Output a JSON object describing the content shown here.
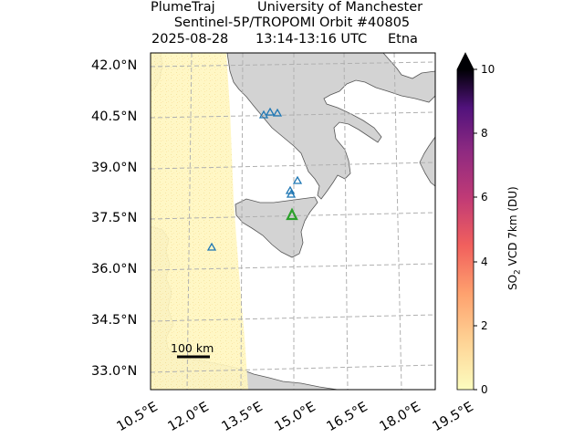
{
  "title": {
    "line1_left": "PlumeTraj",
    "line1_right": "University of Manchester",
    "line2": "Sentinel-5P/TROPOMI Orbit #40805",
    "line3_date": "2025-08-28",
    "line3_time": "13:14-13:16 UTC",
    "line3_volcano": "Etna"
  },
  "lat_labels": [
    "42.0°N",
    "40.5°N",
    "39.0°N",
    "37.5°N",
    "36.0°N",
    "34.5°N",
    "33.0°N"
  ],
  "lon_labels": [
    "10.5°E",
    "12.0°E",
    "13.5°E",
    "15.0°E",
    "16.5°E",
    "18.0°E",
    "19.5°E"
  ],
  "colorbar": {
    "title_prefix": "SO",
    "title_sub": "2",
    "title_suffix": " VCD 7km (DU)",
    "ticks": [
      "0",
      "2",
      "4",
      "6",
      "8",
      "10"
    ],
    "range": [
      0,
      10
    ],
    "extend": "max",
    "colormap": "magma_r"
  },
  "scale_bar": {
    "label": "100 km"
  },
  "colors": {
    "land": "#d3d3d3",
    "sea": "#ffffff",
    "swath": "#fff6c0",
    "volcano_marker": "#2ca02c",
    "other_volcano_marker": "#1f77b4",
    "grid": "#b0b0b0"
  },
  "markers": {
    "target_volcano": "Etna",
    "other_volcano_icon": "triangle-icon"
  }
}
